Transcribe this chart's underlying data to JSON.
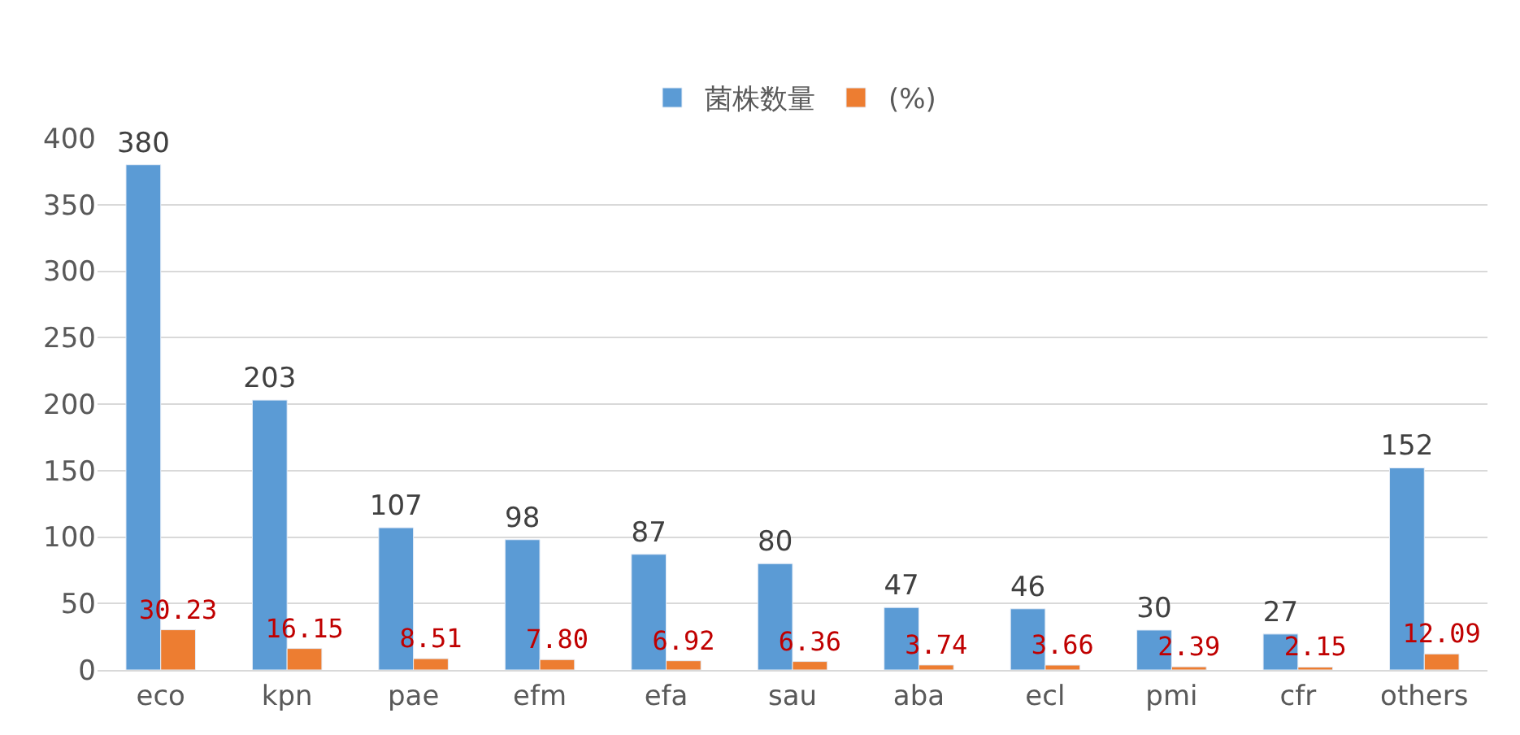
{
  "chart_data": {
    "type": "bar",
    "categories": [
      "eco",
      "kpn",
      "pae",
      "efm",
      "efa",
      "sau",
      "aba",
      "ecl",
      "pmi",
      "cfr",
      "others"
    ],
    "series": [
      {
        "name": "菌株数量",
        "color": "#5b9bd5",
        "values": [
          380,
          203,
          107,
          98,
          87,
          80,
          47,
          46,
          30,
          27,
          152
        ]
      },
      {
        "name": "(%)",
        "color": "#ed7d31",
        "values": [
          30.23,
          16.15,
          8.51,
          7.8,
          6.92,
          6.36,
          3.74,
          3.66,
          2.39,
          2.15,
          12.09
        ],
        "value_labels": [
          "30.23",
          "16.15",
          "8.51",
          "7.80",
          "6.92",
          "6.36",
          "3.74",
          "3.66",
          "2.39",
          "2.15",
          "12.09"
        ]
      }
    ],
    "ylim": [
      0,
      400
    ],
    "yticks": [
      0,
      50,
      100,
      150,
      200,
      250,
      300,
      350,
      400
    ],
    "grid": "y",
    "legend": "top",
    "data_labels": true
  }
}
